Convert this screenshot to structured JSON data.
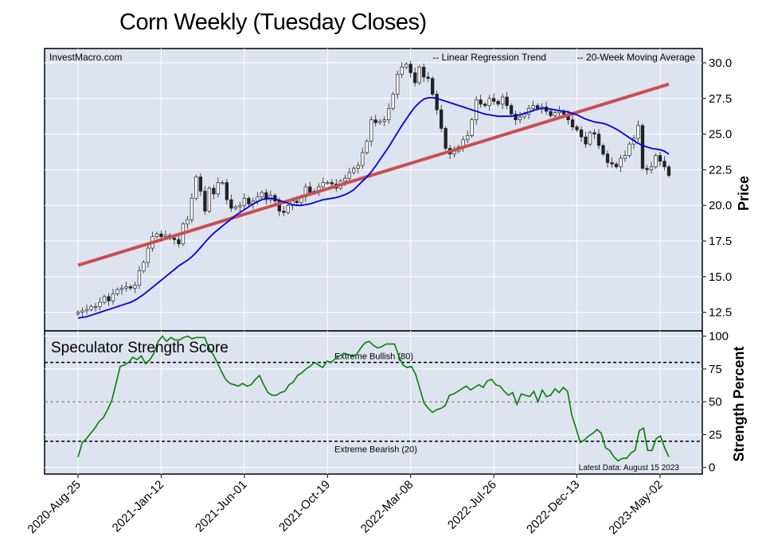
{
  "title": "Corn Weekly (Tuesday Closes)",
  "colors": {
    "background": "#dde3ef",
    "regression": "#c85050",
    "moving_average": "#0000dd",
    "strength": "#008000",
    "legend_regression": "#8b0000",
    "legend_ma": "#0000cc"
  },
  "chart_data": [
    {
      "type": "candlestick",
      "watermark": "InvestMacro.com",
      "ylabel": "Price",
      "ylim": [
        11.2,
        31.0
      ],
      "yticks": [
        12.5,
        15.0,
        17.5,
        20.0,
        22.5,
        25.0,
        27.5,
        30.0
      ],
      "ytick_labels": [
        "12.5",
        "15.0",
        "17.5",
        "20.0",
        "22.5",
        "25.0",
        "27.5",
        "30.0"
      ],
      "grid": true,
      "legend": [
        "-- Linear Regression Trend",
        "-- 20-Week Moving Average"
      ],
      "legend_position": "top-right",
      "close": [
        12.5,
        12.6,
        12.7,
        12.9,
        12.9,
        13.2,
        13.6,
        13.3,
        13.8,
        14.1,
        14.2,
        14.3,
        14.2,
        14.4,
        15.4,
        16.0,
        17.0,
        17.8,
        18.0,
        17.8,
        17.9,
        17.7,
        17.6,
        17.3,
        18.7,
        19.0,
        20.5,
        22.0,
        21.0,
        19.6,
        21.2,
        20.8,
        21.6,
        21.6,
        20.4,
        19.8,
        19.9,
        20.0,
        20.5,
        20.1,
        20.3,
        20.6,
        20.9,
        20.4,
        20.7,
        20.3,
        19.6,
        19.5,
        20.0,
        20.3,
        20.2,
        20.6,
        21.3,
        20.9,
        21.0,
        21.3,
        21.6,
        21.6,
        21.5,
        21.2,
        21.7,
        21.9,
        22.3,
        22.6,
        22.8,
        23.7,
        24.5,
        26.0,
        25.8,
        25.9,
        26.0,
        26.8,
        27.8,
        29.2,
        29.7,
        29.9,
        29.3,
        28.6,
        29.7,
        29.0,
        28.9,
        27.8,
        26.7,
        25.4,
        24.0,
        23.6,
        23.8,
        24.1,
        24.6,
        24.9,
        26.0,
        27.4,
        27.1,
        27.0,
        27.5,
        27.3,
        27.1,
        27.6,
        27.0,
        26.4,
        26.0,
        26.2,
        26.4,
        26.8,
        27.0,
        26.8,
        26.9,
        26.6,
        26.3,
        26.5,
        26.6,
        26.4,
        26.0,
        25.5,
        25.3,
        24.8,
        24.3,
        25.1,
        25.0,
        24.2,
        23.6,
        23.0,
        22.9,
        22.7,
        23.3,
        23.5,
        24.3,
        24.7,
        25.6,
        22.6,
        22.5,
        22.7,
        23.5,
        23.1,
        22.7,
        22.1
      ],
      "ma20": [
        12.1,
        12.15,
        12.2,
        12.3,
        12.4,
        12.5,
        12.6,
        12.7,
        12.8,
        12.9,
        13.0,
        13.1,
        13.2,
        13.35,
        13.55,
        13.75,
        14.0,
        14.25,
        14.5,
        14.75,
        15.0,
        15.25,
        15.5,
        15.75,
        15.95,
        16.15,
        16.4,
        16.7,
        17.05,
        17.4,
        17.75,
        18.05,
        18.3,
        18.55,
        18.8,
        19.05,
        19.3,
        19.5,
        19.7,
        19.9,
        20.1,
        20.25,
        20.4,
        20.5,
        20.5,
        20.45,
        20.35,
        20.25,
        20.15,
        20.05,
        20.0,
        20.0,
        20.05,
        20.1,
        20.2,
        20.3,
        20.4,
        20.45,
        20.5,
        20.55,
        20.65,
        20.75,
        20.9,
        21.1,
        21.4,
        21.7,
        22.0,
        22.35,
        22.75,
        23.2,
        23.65,
        24.1,
        24.6,
        25.1,
        25.6,
        26.05,
        26.5,
        26.9,
        27.2,
        27.45,
        27.55,
        27.55,
        27.5,
        27.4,
        27.3,
        27.2,
        27.1,
        27.0,
        26.9,
        26.8,
        26.7,
        26.6,
        26.5,
        26.4,
        26.35,
        26.3,
        26.25,
        26.25,
        26.25,
        26.25,
        26.3,
        26.35,
        26.45,
        26.55,
        26.65,
        26.75,
        26.8,
        26.8,
        26.75,
        26.7,
        26.65,
        26.6,
        26.55,
        26.45,
        26.35,
        26.2,
        26.05,
        25.95,
        25.85,
        25.8,
        25.75,
        25.65,
        25.5,
        25.35,
        25.15,
        24.95,
        24.75,
        24.55,
        24.35,
        24.2,
        24.1,
        24.0,
        23.95,
        23.9,
        23.8,
        23.6
      ],
      "regression": {
        "start": 15.8,
        "end": 28.5
      }
    },
    {
      "type": "line",
      "title": "Speculator Strength Score",
      "ylabel": "Strength Percent",
      "ylim": [
        -5,
        104
      ],
      "yticks": [
        0,
        25,
        50,
        75,
        100
      ],
      "ytick_labels": [
        "0",
        "25",
        "50",
        "75",
        "100"
      ],
      "x_tick_labels": [
        "2020-Aug-25",
        "2021-Jan-12",
        "2021-Jun-01",
        "2021-Oct-19",
        "2022-Mar-08",
        "2022-Jul-26",
        "2022-Dec-13",
        "2023-May-02"
      ],
      "reference_lines": [
        {
          "value": 80,
          "label": "Extreme Bullish (80)"
        },
        {
          "value": 50,
          "label": ""
        },
        {
          "value": 20,
          "label": "Extreme Bearish (20)"
        }
      ],
      "footnote": "Latest Data: August 15 2023",
      "values": [
        8,
        19,
        22,
        26,
        30,
        35,
        38,
        44,
        51,
        64,
        77,
        78,
        80,
        84,
        82,
        85,
        79,
        82,
        87,
        96,
        100,
        96,
        99,
        97,
        97,
        99,
        100,
        98,
        99,
        99,
        99,
        91,
        86,
        80,
        73,
        67,
        64,
        63,
        62,
        64,
        62,
        63,
        67,
        70,
        63,
        57,
        55,
        55,
        57,
        58,
        63,
        65,
        70,
        72,
        75,
        77,
        80,
        78,
        76,
        81,
        80,
        83,
        85,
        87,
        86,
        85,
        86,
        91,
        95,
        96,
        93,
        91,
        92,
        94,
        94,
        94,
        85,
        78,
        76,
        77,
        71,
        60,
        49,
        45,
        42,
        44,
        45,
        47,
        55,
        56,
        58,
        60,
        62,
        59,
        61,
        63,
        61,
        66,
        67,
        63,
        62,
        58,
        55,
        57,
        48,
        56,
        55,
        54,
        58,
        50,
        59,
        54,
        55,
        60,
        57,
        61,
        58,
        40,
        30,
        19,
        21,
        24,
        26,
        29,
        26,
        15,
        13,
        8,
        5,
        7,
        7,
        11,
        13,
        28,
        30,
        13,
        13,
        22,
        24,
        15,
        8
      ]
    }
  ]
}
